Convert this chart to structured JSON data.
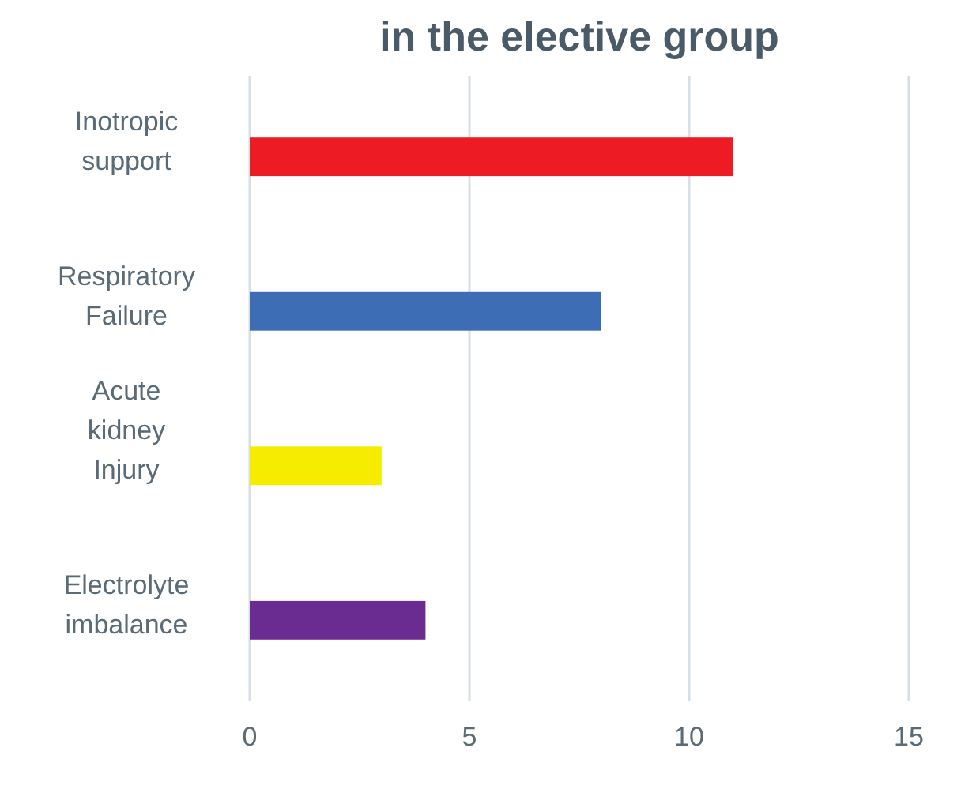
{
  "chart_data": {
    "type": "bar",
    "orientation": "horizontal",
    "title": "in the elective group",
    "categories": [
      "Inotropic support",
      "Respiratory Failure",
      "Acute kidney Injury",
      "Electrolyte imbalance"
    ],
    "values": [
      11,
      8,
      3,
      4
    ],
    "colors": [
      "#ed1c24",
      "#3d6db5",
      "#f5ec00",
      "#6a2c91"
    ],
    "xlim": [
      0,
      15
    ],
    "xticks": [
      0,
      5,
      10,
      15
    ],
    "grid": "x"
  }
}
